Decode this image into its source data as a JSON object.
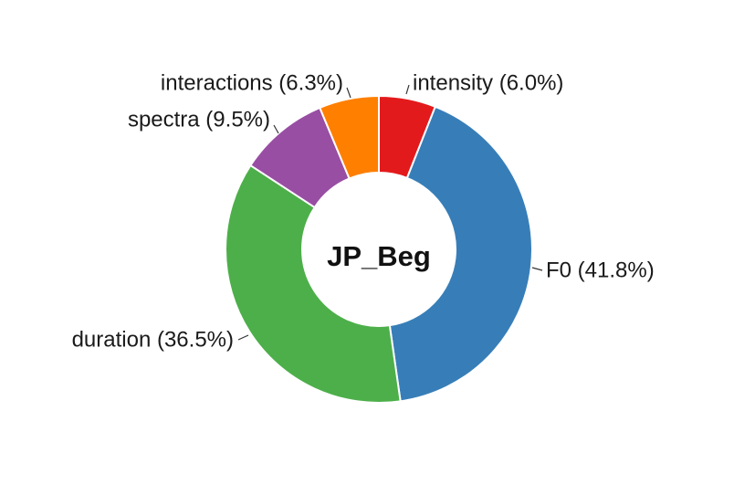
{
  "chart_data": {
    "type": "pie",
    "donut": true,
    "center_label": "JP_Beg",
    "slices": [
      {
        "label": "intensity (6.0%)",
        "category": "intensity",
        "value": 6.0,
        "color": "#e31a1c"
      },
      {
        "label": "F0 (41.8%)",
        "category": "F0",
        "value": 41.8,
        "color": "#377eb8"
      },
      {
        "label": "duration (36.5%)",
        "category": "duration",
        "value": 36.5,
        "color": "#4daf4a"
      },
      {
        "label": "spectra (9.5%)",
        "category": "spectra",
        "value": 9.5,
        "color": "#984ea3"
      },
      {
        "label": "interactions (6.3%)",
        "category": "interactions",
        "value": 6.3,
        "color": "#ff7f00"
      }
    ]
  }
}
